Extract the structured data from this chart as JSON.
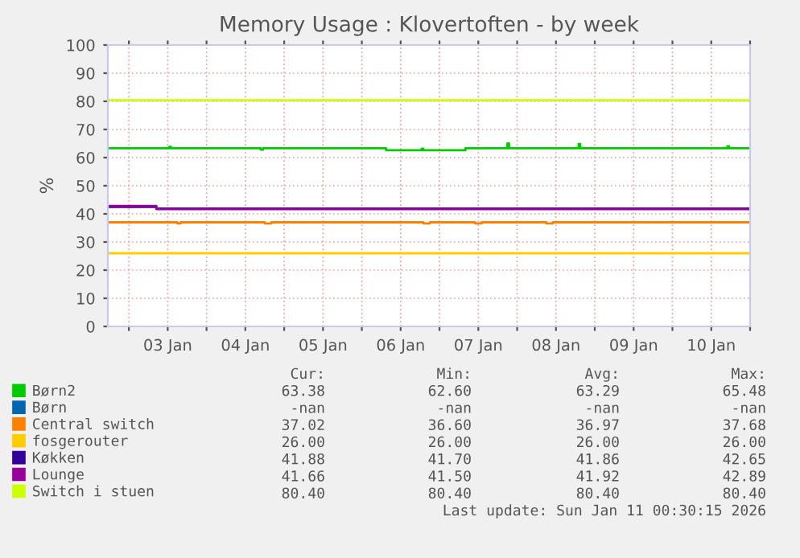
{
  "chart_data": {
    "type": "line",
    "title": "Memory Usage : Klovertoften - by week",
    "ylabel": "%",
    "xlim": [
      "2026-01-02T17:30",
      "2026-01-11T00:00"
    ],
    "ylim": [
      0,
      100
    ],
    "yticks": [
      0,
      10,
      20,
      30,
      40,
      50,
      60,
      70,
      80,
      90,
      100
    ],
    "xticks": [
      {
        "value": "2026-01-03T00:00",
        "label": null
      },
      {
        "value": "2026-01-03T12:00",
        "label": "03 Jan"
      },
      {
        "value": "2026-01-04T00:00",
        "label": null
      },
      {
        "value": "2026-01-04T12:00",
        "label": "04 Jan"
      },
      {
        "value": "2026-01-05T00:00",
        "label": null
      },
      {
        "value": "2026-01-05T12:00",
        "label": "05 Jan"
      },
      {
        "value": "2026-01-06T00:00",
        "label": null
      },
      {
        "value": "2026-01-06T12:00",
        "label": "06 Jan"
      },
      {
        "value": "2026-01-07T00:00",
        "label": null
      },
      {
        "value": "2026-01-07T12:00",
        "label": "07 Jan"
      },
      {
        "value": "2026-01-08T00:00",
        "label": null
      },
      {
        "value": "2026-01-08T12:00",
        "label": "08 Jan"
      },
      {
        "value": "2026-01-09T00:00",
        "label": null
      },
      {
        "value": "2026-01-09T12:00",
        "label": "09 Jan"
      },
      {
        "value": "2026-01-10T00:00",
        "label": null
      },
      {
        "value": "2026-01-10T12:00",
        "label": "10 Jan"
      },
      {
        "value": "2026-01-11T00:00",
        "label": null
      }
    ],
    "grid": true,
    "legend": "bottom",
    "marker": "none",
    "line_style": "solid",
    "series": [
      {
        "name": "Børn2",
        "color": "#00cc00",
        "x": [
          "2026-01-02T17:30",
          "2026-01-03T12:00",
          "2026-01-03T12:30",
          "2026-01-03T13:00",
          "2026-01-04T16:00",
          "2026-01-04T16:45",
          "2026-01-04T17:30",
          "2026-01-06T07:00",
          "2026-01-06T07:30",
          "2026-01-06T18:00",
          "2026-01-06T18:30",
          "2026-01-06T19:00",
          "2026-01-07T07:30",
          "2026-01-07T08:00",
          "2026-01-07T20:30",
          "2026-01-07T21:00",
          "2026-01-07T21:30",
          "2026-01-08T18:30",
          "2026-01-08T19:00",
          "2026-01-08T19:30",
          "2026-01-10T16:30",
          "2026-01-10T17:00",
          "2026-01-10T17:30",
          "2026-01-11T00:00"
        ],
        "values": [
          63.3,
          63.3,
          63.8,
          63.3,
          63.3,
          62.8,
          63.3,
          63.3,
          62.6,
          62.6,
          63.2,
          62.6,
          62.6,
          63.3,
          63.3,
          65.0,
          63.3,
          63.3,
          64.8,
          63.3,
          63.3,
          64.0,
          63.3,
          63.4
        ]
      },
      {
        "name": "Børn",
        "color": "#0066b3"
      },
      {
        "name": "Central switch",
        "color": "#ff8000",
        "x": [
          "2026-01-02T17:30",
          "2026-01-03T14:00",
          "2026-01-03T15:00",
          "2026-01-03T16:00",
          "2026-01-04T17:00",
          "2026-01-04T18:00",
          "2026-01-04T20:00",
          "2026-01-06T18:00",
          "2026-01-06T19:00",
          "2026-01-06T21:00",
          "2026-01-07T10:00",
          "2026-01-07T11:00",
          "2026-01-07T13:00",
          "2026-01-08T08:00",
          "2026-01-08T09:00",
          "2026-01-08T11:00",
          "2026-01-11T00:00"
        ],
        "values": [
          37.0,
          37.0,
          36.6,
          37.0,
          37.0,
          36.6,
          37.0,
          37.0,
          36.6,
          37.0,
          37.0,
          36.6,
          37.0,
          37.0,
          36.6,
          37.0,
          37.0
        ]
      },
      {
        "name": "fosgerouter",
        "color": "#ffcc00",
        "x": [
          "2026-01-02T17:30",
          "2026-01-11T00:00"
        ],
        "values": [
          26.0,
          26.0
        ]
      },
      {
        "name": "Køkken",
        "color": "#330099",
        "x": [
          "2026-01-02T17:30",
          "2026-01-03T08:00",
          "2026-01-03T08:30",
          "2026-01-06T03:30",
          "2026-01-11T00:00"
        ],
        "values": [
          42.5,
          42.5,
          41.9,
          41.9,
          41.9
        ]
      },
      {
        "name": "Lounge",
        "color": "#990099",
        "x": [
          "2026-01-02T17:30",
          "2026-01-03T08:00",
          "2026-01-03T08:30",
          "2026-01-11T00:00"
        ],
        "values": [
          42.8,
          42.8,
          41.7,
          41.7
        ]
      },
      {
        "name": "Switch i stuen",
        "color": "#ccff00",
        "x": [
          "2026-01-02T17:30",
          "2026-01-11T00:00"
        ],
        "values": [
          80.4,
          80.4
        ]
      }
    ],
    "annotations": [
      "Cur:",
      "Min:",
      "Avg:",
      "Max:",
      "63.38",
      "62.60",
      "63.29",
      "65.48",
      "-nan",
      "-nan",
      "-nan",
      "-nan",
      "37.02",
      "36.60",
      "36.97",
      "37.68",
      "26.00",
      "26.00",
      "26.00",
      "26.00",
      "41.88",
      "41.70",
      "41.86",
      "42.65",
      "41.66",
      "41.50",
      "41.92",
      "42.89",
      "80.40",
      "80.40",
      "80.40",
      "80.40",
      "Last update: Sun Jan 11 00:30:15 2026"
    ]
  }
}
